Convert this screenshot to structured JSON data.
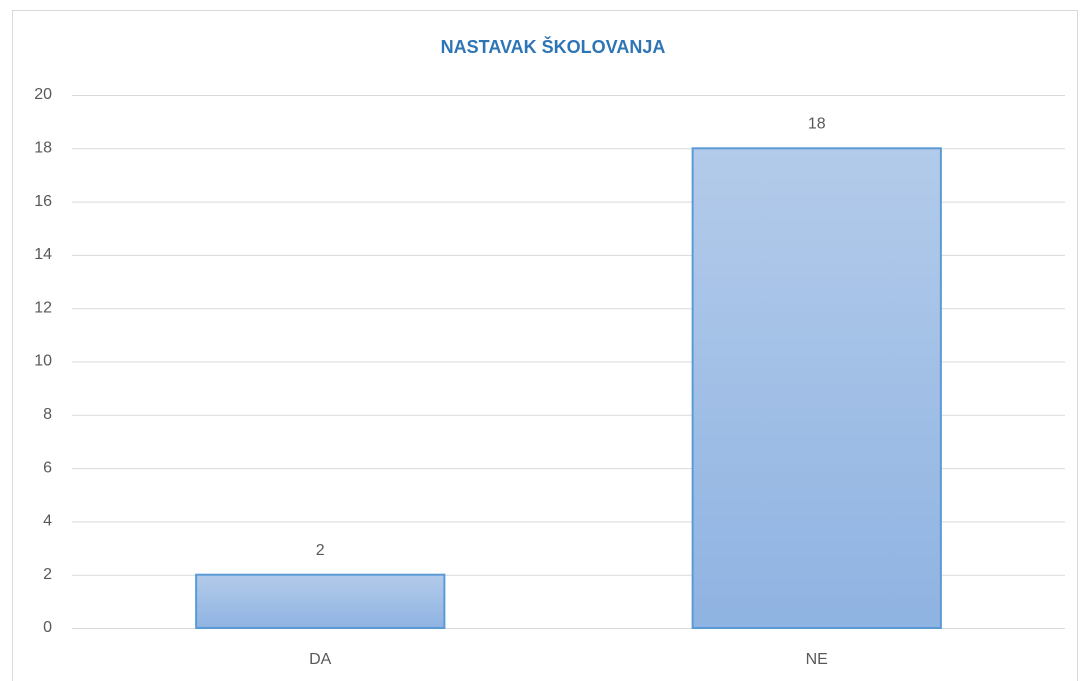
{
  "chart_data": {
    "type": "bar",
    "title": "NASTAVAK ŠKOLOVANJA",
    "categories": [
      "DA",
      "NE"
    ],
    "values": [
      2,
      18
    ],
    "color": "#5b9bd5",
    "ylim": [
      0,
      20
    ],
    "yticks": [
      0,
      2,
      4,
      6,
      8,
      10,
      12,
      14,
      16,
      18,
      20
    ],
    "grid": true,
    "data_labels": true
  }
}
